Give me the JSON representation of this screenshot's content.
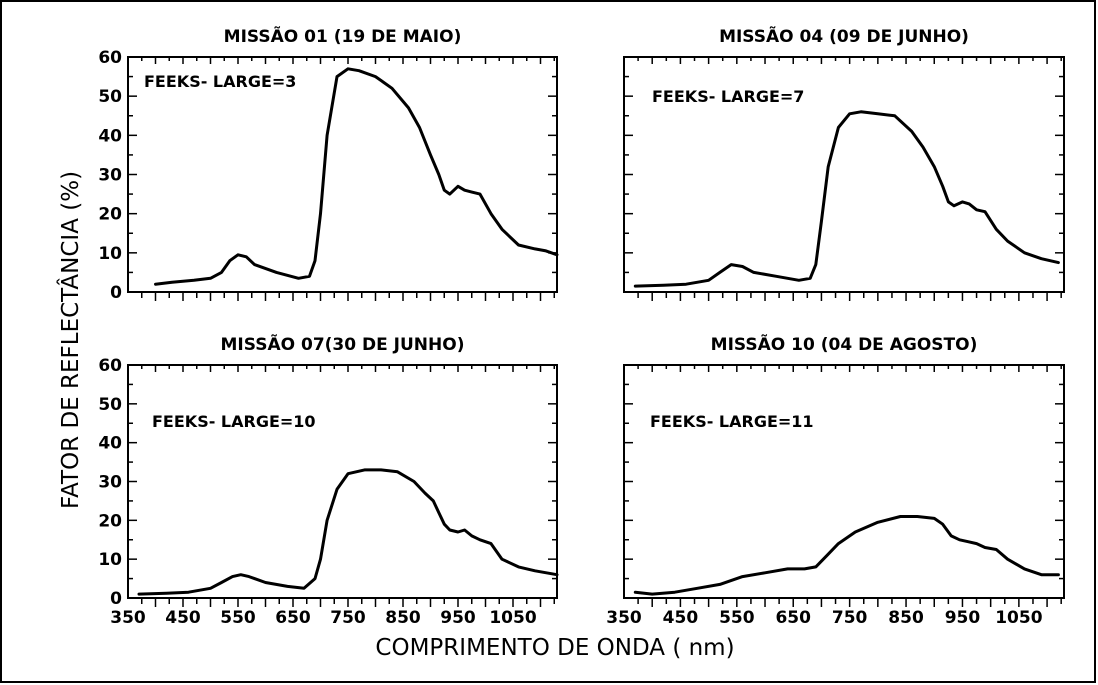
{
  "figure": {
    "ylabel": "FATOR DE REFLECTÂNCIA (%)",
    "xlabel": "COMPRIMENTO  DE  ONDA ( nm)"
  },
  "chart_data": [
    {
      "type": "line",
      "title": "MISSÃO 01 (19 DE MAIO)",
      "annotation": "FEEKS- LARGE=3",
      "xlim": [
        350,
        1130
      ],
      "ylim": [
        0,
        60
      ],
      "yticks": [
        0,
        10,
        20,
        30,
        40,
        50,
        60
      ],
      "xticks": [],
      "x": [
        400,
        430,
        470,
        500,
        520,
        535,
        550,
        565,
        580,
        620,
        660,
        680,
        690,
        700,
        712,
        730,
        750,
        770,
        800,
        830,
        860,
        880,
        900,
        915,
        925,
        935,
        950,
        962,
        975,
        990,
        1010,
        1030,
        1060,
        1090,
        1110,
        1130
      ],
      "y": [
        2,
        2.5,
        3,
        3.5,
        5,
        8,
        9.5,
        9,
        7,
        5,
        3.5,
        4,
        8,
        20,
        40,
        55,
        57,
        56.5,
        55,
        52,
        47,
        42,
        35,
        30,
        26,
        25,
        27,
        26,
        25.5,
        25,
        20,
        16,
        12,
        11,
        10.5,
        9.5
      ]
    },
    {
      "type": "line",
      "title": "MISSÃO 04 (09 DE JUNHO)",
      "annotation": "FEEKS- LARGE=7",
      "xlim": [
        350,
        1130
      ],
      "ylim": [
        0,
        60
      ],
      "yticks": [],
      "xticks": [],
      "x": [
        370,
        420,
        460,
        500,
        520,
        540,
        560,
        580,
        620,
        660,
        680,
        690,
        700,
        712,
        730,
        750,
        770,
        800,
        830,
        860,
        880,
        900,
        915,
        925,
        935,
        950,
        962,
        975,
        990,
        1010,
        1030,
        1060,
        1090,
        1120
      ],
      "y": [
        1.5,
        1.7,
        2,
        3,
        5,
        7,
        6.5,
        5,
        4,
        3,
        3.5,
        7,
        18,
        32,
        42,
        45.5,
        46,
        45.5,
        45,
        41,
        37,
        32,
        27,
        23,
        22,
        23,
        22.5,
        21,
        20.5,
        16,
        13,
        10,
        8.5,
        7.5
      ]
    },
    {
      "type": "line",
      "title": "MISSÃO 07(30 DE JUNHO)",
      "annotation": "FEEKS- LARGE=10",
      "xlim": [
        350,
        1130
      ],
      "ylim": [
        0,
        60
      ],
      "yticks": [
        0,
        10,
        20,
        30,
        40,
        50,
        60
      ],
      "xticks": [
        350,
        450,
        550,
        650,
        750,
        850,
        950,
        1050
      ],
      "x": [
        370,
        420,
        460,
        500,
        520,
        540,
        555,
        570,
        600,
        640,
        670,
        690,
        700,
        712,
        730,
        750,
        780,
        810,
        840,
        870,
        890,
        905,
        915,
        925,
        935,
        950,
        962,
        975,
        990,
        1010,
        1030,
        1060,
        1090,
        1130
      ],
      "y": [
        1,
        1.2,
        1.5,
        2.5,
        4,
        5.5,
        6,
        5.5,
        4,
        3,
        2.5,
        5,
        10,
        20,
        28,
        32,
        33,
        33,
        32.5,
        30,
        27,
        25,
        22,
        19,
        17.5,
        17,
        17.5,
        16,
        15,
        14,
        10,
        8,
        7,
        6
      ]
    },
    {
      "type": "line",
      "title": "MISSÃO 10 (04 DE AGOSTO)",
      "annotation": "FEEKS- LARGE=11",
      "xlim": [
        350,
        1130
      ],
      "ylim": [
        0,
        60
      ],
      "yticks": [],
      "xticks": [
        350,
        450,
        550,
        650,
        750,
        850,
        950,
        1050
      ],
      "x": [
        370,
        400,
        440,
        480,
        520,
        560,
        600,
        640,
        670,
        690,
        710,
        730,
        760,
        800,
        840,
        870,
        900,
        915,
        930,
        945,
        960,
        975,
        990,
        1010,
        1030,
        1060,
        1090,
        1120
      ],
      "y": [
        1.5,
        1,
        1.5,
        2.5,
        3.5,
        5.5,
        6.5,
        7.5,
        7.5,
        8,
        11,
        14,
        17,
        19.5,
        21,
        21,
        20.5,
        19,
        16,
        15,
        14.5,
        14,
        13,
        12.5,
        10,
        7.5,
        6,
        6
      ]
    }
  ]
}
